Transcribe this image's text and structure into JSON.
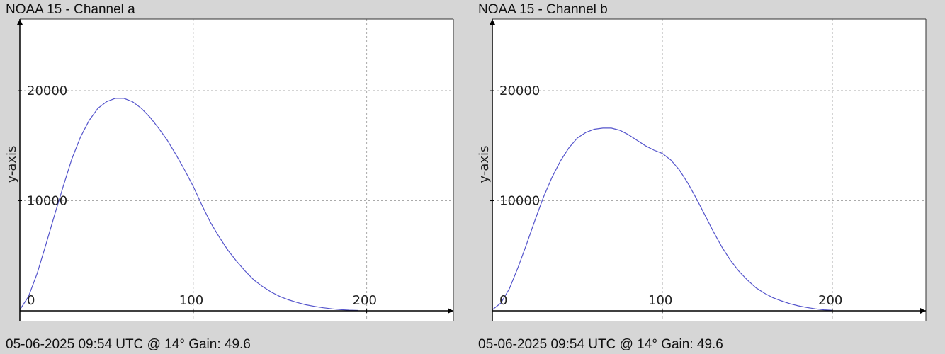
{
  "chart_data": [
    {
      "type": "line",
      "title": "NOAA 15 - Channel a",
      "ylabel": "y-axis",
      "xlabel": "",
      "footer": "05-06-2025 09:54 UTC @ 14° Gain: 49.6",
      "xlim": [
        0,
        250
      ],
      "ylim": [
        -900,
        26500
      ],
      "x_ticks": [
        0,
        100,
        200
      ],
      "y_ticks": [
        10000,
        20000
      ],
      "grid": true,
      "series": [
        {
          "color": "#5555cc",
          "x": [
            0,
            5,
            10,
            15,
            20,
            25,
            30,
            35,
            40,
            45,
            50,
            55,
            60,
            65,
            70,
            75,
            80,
            85,
            90,
            95,
            100,
            105,
            110,
            115,
            120,
            125,
            130,
            135,
            140,
            145,
            150,
            155,
            160,
            165,
            170,
            175,
            180,
            185,
            190,
            195
          ],
          "y": [
            100,
            1300,
            3400,
            6000,
            8700,
            11300,
            13800,
            15800,
            17300,
            18400,
            19000,
            19300,
            19300,
            19000,
            18400,
            17600,
            16600,
            15500,
            14200,
            12800,
            11300,
            9600,
            8000,
            6700,
            5500,
            4500,
            3600,
            2800,
            2200,
            1700,
            1300,
            1000,
            750,
            550,
            400,
            280,
            180,
            110,
            60,
            30
          ]
        }
      ]
    },
    {
      "type": "line",
      "title": "NOAA 15 - Channel b",
      "ylabel": "y-axis",
      "xlabel": "",
      "footer": "05-06-2025 09:54 UTC @ 14° Gain: 49.6",
      "xlim": [
        0,
        255
      ],
      "ylim": [
        -900,
        26500
      ],
      "x_ticks": [
        0,
        100,
        200
      ],
      "y_ticks": [
        10000,
        20000
      ],
      "grid": true,
      "series": [
        {
          "color": "#5555cc",
          "x": [
            0,
            5,
            10,
            15,
            20,
            25,
            30,
            35,
            40,
            45,
            50,
            55,
            60,
            65,
            70,
            75,
            80,
            85,
            90,
            95,
            100,
            105,
            110,
            115,
            120,
            125,
            130,
            135,
            140,
            145,
            150,
            155,
            160,
            165,
            170,
            175,
            180,
            185,
            190,
            195,
            200
          ],
          "y": [
            100,
            700,
            2000,
            3900,
            6000,
            8200,
            10300,
            12100,
            13600,
            14800,
            15700,
            16200,
            16500,
            16600,
            16600,
            16400,
            16000,
            15500,
            15000,
            14600,
            14300,
            13700,
            12800,
            11600,
            10200,
            8700,
            7200,
            5800,
            4600,
            3600,
            2800,
            2100,
            1600,
            1200,
            900,
            650,
            450,
            300,
            180,
            90,
            40
          ]
        }
      ]
    }
  ]
}
